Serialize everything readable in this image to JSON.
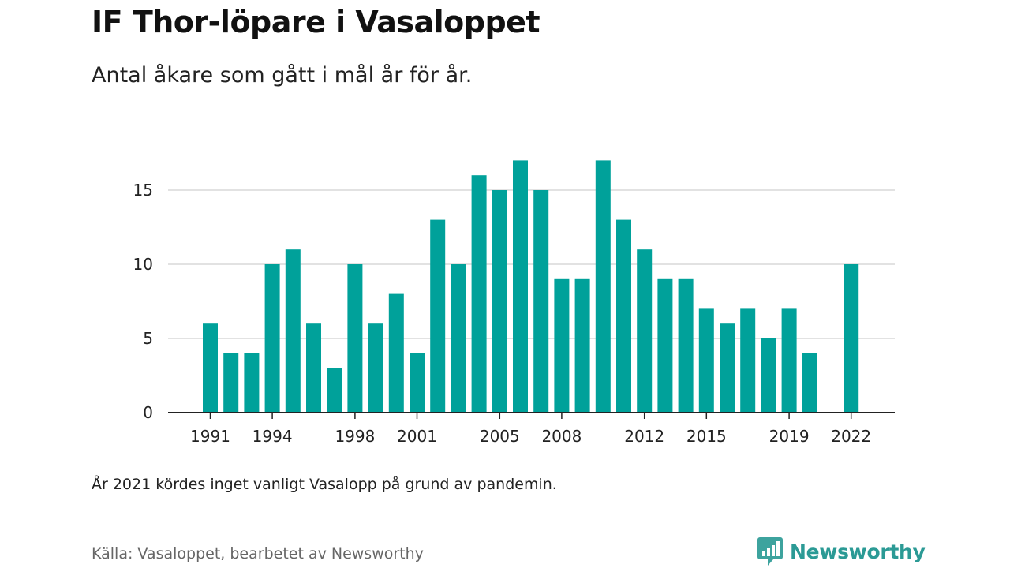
{
  "title": "IF Thor-löpare i Vasaloppet",
  "subtitle": "Antal åkare som gått i mål år för år.",
  "footnote": "År 2021 kördes inget vanligt Vasalopp på grund av pandemin.",
  "source": "Källa: Vasaloppet, bearbetet av Newsworthy",
  "brand": {
    "name": "Newsworthy",
    "icon": "newsworthy-logo-icon",
    "color": "#2b9a95"
  },
  "chart_data": {
    "type": "bar",
    "title": "IF Thor-löpare i Vasaloppet",
    "subtitle": "Antal åkare som gått i mål år för år.",
    "xlabel": "",
    "ylabel": "",
    "color": "#00a19a",
    "categories": [
      1991,
      1992,
      1993,
      1994,
      1995,
      1996,
      1997,
      1998,
      1999,
      2000,
      2001,
      2002,
      2003,
      2004,
      2005,
      2006,
      2007,
      2008,
      2009,
      2010,
      2011,
      2012,
      2013,
      2014,
      2015,
      2016,
      2017,
      2018,
      2019,
      2020,
      2021,
      2022
    ],
    "values": [
      6,
      4,
      4,
      10,
      11,
      6,
      3,
      10,
      6,
      8,
      4,
      13,
      10,
      16,
      15,
      17,
      15,
      9,
      9,
      17,
      13,
      11,
      9,
      9,
      7,
      6,
      7,
      5,
      7,
      4,
      null,
      10
    ],
    "x_ticks": [
      "1991",
      "1994",
      "1998",
      "2001",
      "2005",
      "2008",
      "2012",
      "2015",
      "2019",
      "2022"
    ],
    "y_ticks": [
      "0",
      "5",
      "10",
      "15"
    ],
    "ylim": [
      0,
      17
    ],
    "grid": true,
    "legend": "none"
  }
}
